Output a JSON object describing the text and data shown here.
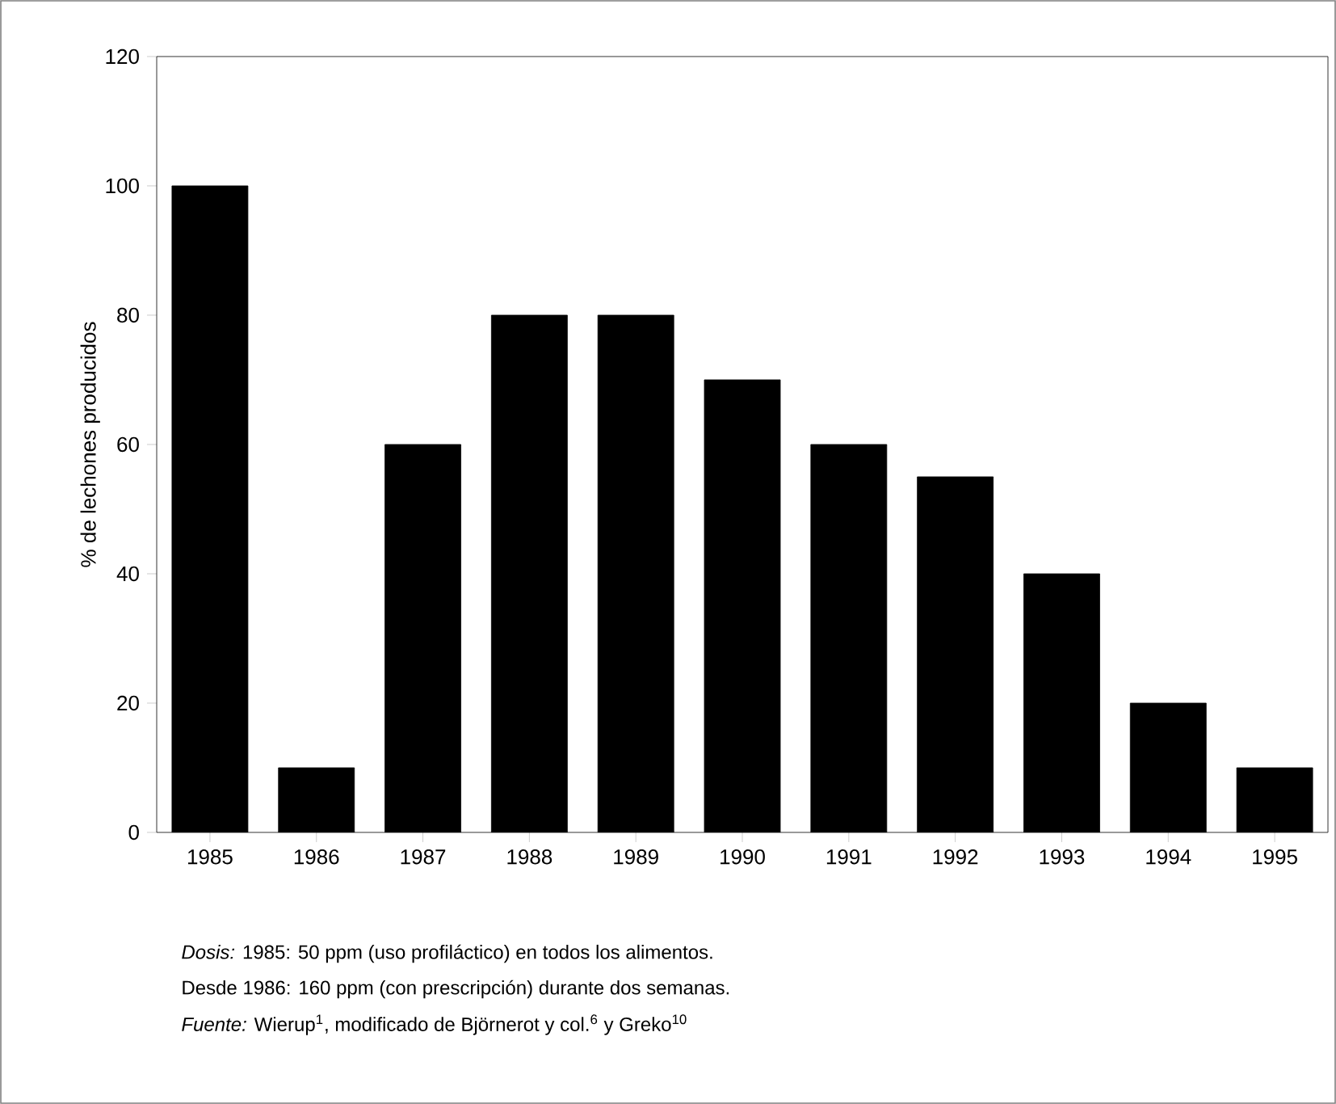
{
  "chart_data": {
    "type": "bar",
    "ylabel": "% de lechones producidos",
    "categories": [
      "1985",
      "1986",
      "1987",
      "1988",
      "1989",
      "1990",
      "1991",
      "1992",
      "1993",
      "1994",
      "1995"
    ],
    "values": [
      100,
      10,
      60,
      80,
      80,
      70,
      60,
      55,
      40,
      20,
      10
    ],
    "color": "#000000",
    "ylim": [
      0,
      120
    ],
    "yticks": [
      0,
      20,
      40,
      60,
      80,
      100,
      120
    ],
    "grid": false,
    "annotations": [
      "*Dosis:* 1985: 50 ppm (uso profiláctico) en todos los alimentos.",
      "Desde 1986: 160 ppm  (con prescripción) durante dos semanas.",
      "*Fuente:* Wierup$^{1}$, modificado de Björnerot y col.$^{6}$ y Greko$^{10}$"
    ]
  }
}
